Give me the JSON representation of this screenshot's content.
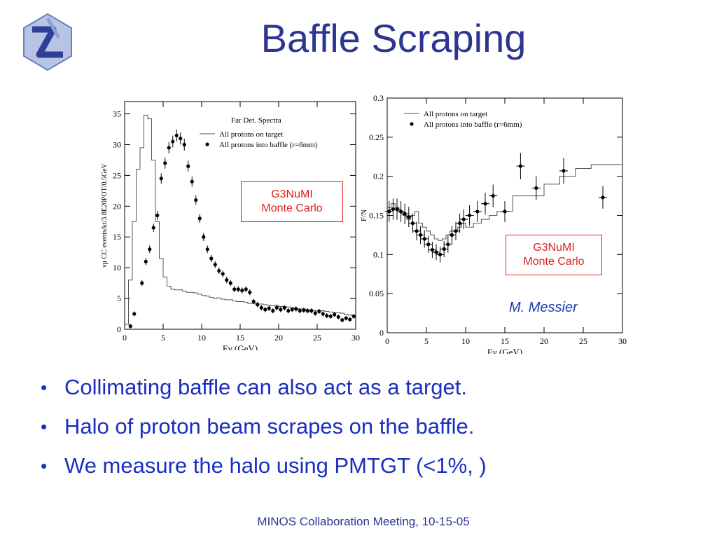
{
  "slide": {
    "title": "Baffle Scraping",
    "footer": "MINOS Collaboration Meeting, 10-15-05",
    "author": "M. Messier",
    "logo_icon": "minos-logo-icon",
    "accent_color": "#2d3593",
    "bullet_color": "#1a2fbf",
    "box_color": "#e02020"
  },
  "bullets": [
    "Collimating baffle can also act as a target.",
    "Halo of proton beam scrapes on the baffle.",
    "We measure the halo using PMTGT (<1%, )"
  ],
  "boxes": {
    "left": {
      "line1": "G3NuMI",
      "line2": "Monte Carlo"
    },
    "right": {
      "line1": "G3NuMI",
      "line2": "Monte Carlo"
    }
  },
  "chart_data": [
    {
      "type": "line",
      "title": "Far Det. Spectra",
      "xlabel": "Eν (GeV)",
      "ylabel": "νμ CC events/kt/3.8E20POT/0.5GeV",
      "xlim": [
        0,
        30
      ],
      "ylim": [
        0,
        37
      ],
      "xticks": [
        0,
        5,
        10,
        15,
        20,
        25,
        30
      ],
      "yticks": [
        0,
        5,
        10,
        15,
        20,
        25,
        30,
        35
      ],
      "grid": false,
      "legend_position": "top-right",
      "series": [
        {
          "name": "All protons on target",
          "style": "histogram",
          "x": [
            0.5,
            1,
            1.5,
            2,
            2.5,
            3,
            3.5,
            4,
            4.5,
            5,
            5.5,
            6,
            6.5,
            7,
            7.5,
            8,
            8.5,
            9,
            9.5,
            10,
            10.5,
            11,
            11.5,
            12,
            12.5,
            13,
            13.5,
            14,
            14.5,
            15,
            15.5,
            16,
            16.5,
            17,
            17.5,
            18,
            18.5,
            19,
            19.5,
            20,
            20.5,
            21,
            21.5,
            22,
            22.5,
            23,
            23.5,
            24,
            24.5,
            25,
            25.5,
            26,
            26.5,
            27,
            27.5,
            28,
            28.5,
            29,
            29.5,
            30
          ],
          "values": [
            0.8,
            8.0,
            17.5,
            26.0,
            29.5,
            34.8,
            34.2,
            27.5,
            17.5,
            11.5,
            8.5,
            7.0,
            6.5,
            6.4,
            6.4,
            6.2,
            6.0,
            6.0,
            5.9,
            5.7,
            5.5,
            5.4,
            5.2,
            5.0,
            5.1,
            4.9,
            4.8,
            4.8,
            4.6,
            4.5,
            4.5,
            4.4,
            4.2,
            4.2,
            4.1,
            4.1,
            4.0,
            3.9,
            3.8,
            3.9,
            3.7,
            3.7,
            3.6,
            3.5,
            3.4,
            3.3,
            3.3,
            3.1,
            3.1,
            3.0,
            3.0,
            3.0,
            2.9,
            2.8,
            2.7,
            2.7,
            2.6,
            2.4,
            2.3,
            2.2
          ]
        },
        {
          "name": "All protons into baffle (r=6mm)",
          "style": "points",
          "x": [
            0.75,
            1.25,
            2.25,
            2.75,
            3.25,
            3.75,
            4.25,
            4.75,
            5.25,
            5.75,
            6.25,
            6.75,
            7.25,
            7.75,
            8.25,
            8.75,
            9.25,
            9.75,
            10.25,
            10.75,
            11.25,
            11.75,
            12.25,
            12.75,
            13.25,
            13.75,
            14.25,
            14.75,
            15.25,
            15.75,
            16.25,
            16.75,
            17.25,
            17.75,
            18.25,
            18.75,
            19.25,
            19.75,
            20.25,
            20.75,
            21.25,
            21.75,
            22.25,
            22.75,
            23.25,
            23.75,
            24.25,
            24.75,
            25.25,
            25.75,
            26.25,
            26.75,
            27.25,
            27.75,
            28.25,
            28.75,
            29.25,
            29.75
          ],
          "values": [
            0.5,
            2.5,
            7.5,
            11.0,
            13.0,
            16.5,
            18.5,
            24.5,
            27.0,
            29.5,
            30.5,
            31.5,
            31.0,
            30.0,
            26.5,
            24.0,
            21.0,
            18.0,
            15.0,
            13.0,
            11.5,
            10.5,
            9.5,
            9.0,
            8.0,
            7.5,
            6.5,
            6.5,
            6.3,
            6.5,
            6.0,
            4.5,
            4.0,
            3.5,
            3.2,
            3.4,
            3.0,
            3.5,
            3.2,
            3.5,
            3.0,
            3.2,
            3.3,
            3.0,
            3.1,
            3.0,
            3.0,
            2.6,
            2.9,
            2.5,
            2.2,
            2.1,
            2.4,
            2.0,
            1.5,
            1.8,
            1.6,
            2.1
          ]
        }
      ]
    },
    {
      "type": "line",
      "xlabel": "Eν (GeV)",
      "ylabel": "F/N",
      "xlim": [
        0,
        30
      ],
      "ylim": [
        0,
        0.3
      ],
      "xticks": [
        0,
        5,
        10,
        15,
        20,
        25,
        30
      ],
      "yticks": [
        0,
        0.05,
        0.1,
        0.15,
        0.2,
        0.25,
        0.3
      ],
      "grid": false,
      "legend_position": "top-left",
      "series": [
        {
          "name": "All protons on target",
          "style": "histogram",
          "x": [
            0.5,
            1,
            1.5,
            2,
            2.5,
            3,
            3.5,
            4,
            4.5,
            5,
            5.5,
            6,
            6.5,
            7,
            7.5,
            8,
            8.5,
            9,
            9.5,
            10,
            11,
            12,
            13,
            14,
            16,
            18,
            20,
            22,
            24,
            26,
            28,
            30
          ],
          "values": [
            0.16,
            0.165,
            0.16,
            0.155,
            0.15,
            0.145,
            0.15,
            0.155,
            0.14,
            0.135,
            0.13,
            0.125,
            0.12,
            0.118,
            0.12,
            0.125,
            0.13,
            0.13,
            0.135,
            0.14,
            0.135,
            0.14,
            0.145,
            0.15,
            0.155,
            0.175,
            0.175,
            0.19,
            0.2,
            0.21,
            0.215,
            0.215
          ]
        },
        {
          "name": "All protons into baffle (r=6mm)",
          "style": "points",
          "x": [
            0.25,
            0.75,
            1.25,
            1.75,
            2.25,
            2.75,
            3.25,
            3.75,
            4.25,
            4.75,
            5.25,
            5.75,
            6.25,
            6.75,
            7.25,
            7.75,
            8.25,
            8.75,
            9.25,
            9.75,
            10.5,
            11.5,
            12.5,
            13.5,
            15,
            17,
            19,
            22.5,
            27.5
          ],
          "values": [
            0.155,
            0.158,
            0.158,
            0.155,
            0.152,
            0.148,
            0.14,
            0.13,
            0.125,
            0.12,
            0.113,
            0.106,
            0.103,
            0.1,
            0.107,
            0.113,
            0.125,
            0.13,
            0.14,
            0.145,
            0.15,
            0.155,
            0.165,
            0.175,
            0.155,
            0.213,
            0.185,
            0.207,
            0.173
          ]
        }
      ]
    }
  ]
}
